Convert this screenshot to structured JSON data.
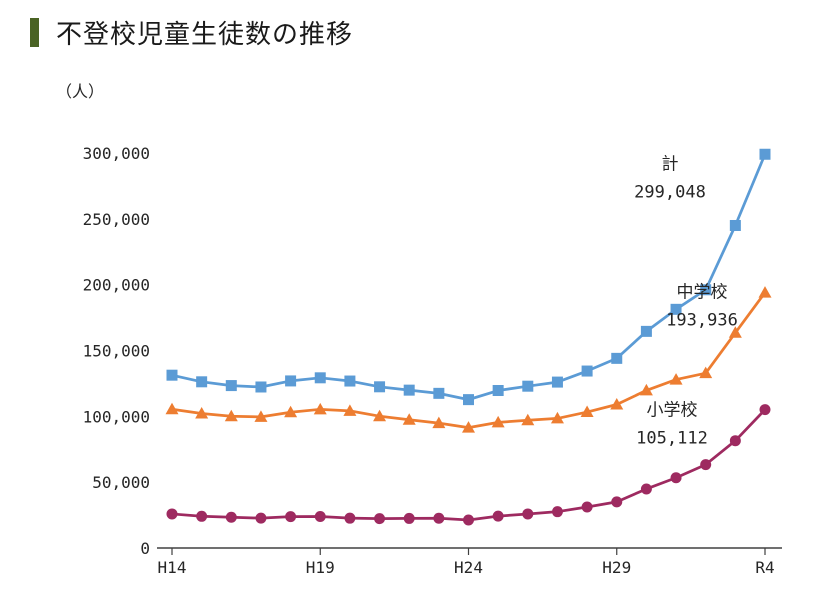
{
  "header": {
    "title": "不登校児童生徒数の推移"
  },
  "style": {
    "accent_color": "#4A6324",
    "axis_color": "#404040",
    "text_color": "#262626",
    "background": "#FFFFFF"
  },
  "chart_data": {
    "type": "line",
    "title": "不登校児童生徒数の推移",
    "unit_label": "（人）",
    "grid": false,
    "legend": "inline-annotations",
    "x": [
      "H14",
      "H15",
      "H16",
      "H17",
      "H18",
      "H19",
      "H20",
      "H21",
      "H22",
      "H23",
      "H24",
      "H25",
      "H26",
      "H27",
      "H28",
      "H29",
      "H30",
      "R1",
      "R2",
      "R3",
      "R4"
    ],
    "x_tick_labels": [
      "H14",
      "H19",
      "H24",
      "H29",
      "R4"
    ],
    "ylim": [
      0,
      300000
    ],
    "y_ticks": [
      0,
      50000,
      100000,
      150000,
      200000,
      250000,
      300000
    ],
    "y_tick_labels": [
      "0",
      "50,000",
      "100,000",
      "150,000",
      "200,000",
      "250,000",
      "300,000"
    ],
    "series": [
      {
        "name": "計",
        "marker": "square",
        "color": "#5B9BD5",
        "label_value": "299,048",
        "values": [
          131252,
          126226,
          123358,
          122287,
          126894,
          129255,
          126805,
          122432,
          119891,
          117458,
          112689,
          119617,
          122897,
          126009,
          134398,
          144031,
          164528,
          181272,
          196127,
          244940,
          299048
        ]
      },
      {
        "name": "中学校",
        "marker": "triangle",
        "color": "#ED7D31",
        "label_value": "193,936",
        "values": [
          105383,
          102149,
          100040,
          99578,
          103069,
          105328,
          104153,
          100105,
          97428,
          94836,
          91446,
          95442,
          97033,
          98408,
          103247,
          108999,
          119687,
          127922,
          132777,
          163442,
          193936
        ]
      },
      {
        "name": "小学校",
        "marker": "circle",
        "color": "#9E2A60",
        "label_value": "105,112",
        "values": [
          25869,
          24077,
          23318,
          22709,
          23825,
          23927,
          22652,
          22327,
          22463,
          22622,
          21243,
          24175,
          25864,
          27583,
          31151,
          35032,
          44841,
          53350,
          63350,
          81498,
          105112
        ]
      }
    ]
  }
}
